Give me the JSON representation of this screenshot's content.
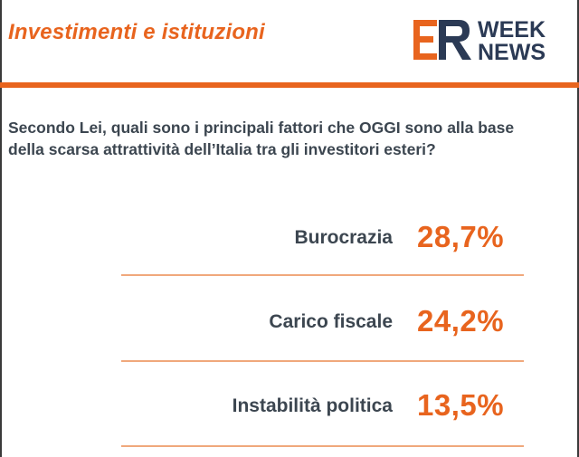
{
  "header": {
    "title": "Investimenti e istituzioni",
    "logo_text": {
      "mark": "ER",
      "word1": "WEEK",
      "word2": "NEWS"
    }
  },
  "question": {
    "line1": "Secondo Lei, quali sono i principali fattori che OGGI sono alla base",
    "line2": "della scarsa attrattività dell’Italia tra gli investitori esteri?"
  },
  "colors": {
    "accent": "#e8641e",
    "navy": "#2b3a55",
    "text": "#3c4650",
    "divider": "#f0a87c"
  },
  "chart_data": {
    "type": "table",
    "categories": [
      "Burocrazia",
      "Carico fiscale",
      "Instabilità politica"
    ],
    "values": [
      28.7,
      24.2,
      13.5
    ],
    "value_labels": [
      "28,7%",
      "24,2%",
      "13,5%"
    ],
    "unit": "%"
  }
}
